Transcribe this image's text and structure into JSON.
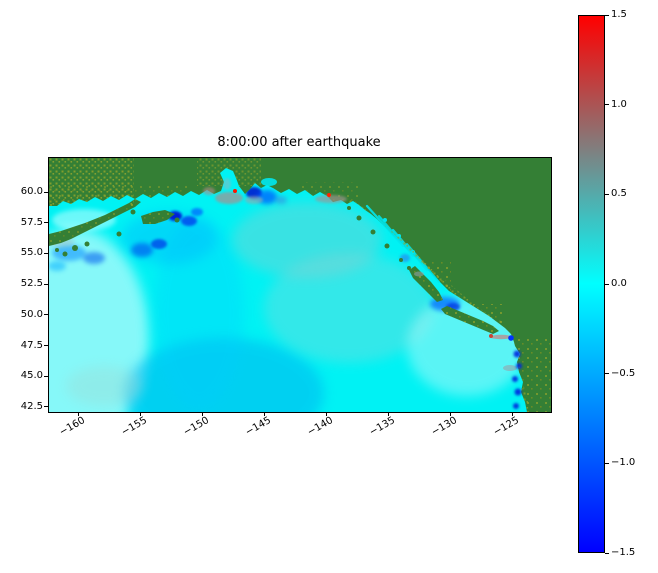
{
  "title": "8:00:00 after earthquake",
  "chart_data": {
    "type": "heatmap",
    "title": "8:00:00 after earthquake",
    "xlabel": "",
    "ylabel": "",
    "x_ticks": [
      "−160",
      "−155",
      "−150",
      "−145",
      "−140",
      "−135",
      "−130",
      "−125"
    ],
    "y_ticks": [
      "60.0",
      "57.5",
      "55.0",
      "52.5",
      "50.0",
      "47.5",
      "45.0",
      "42.5"
    ],
    "xlim": [
      -162.5,
      -122.2
    ],
    "ylim": [
      42.2,
      62.9
    ],
    "grid": false,
    "colorbar": {
      "position": "right",
      "ticks": [
        "1.5",
        "1.0",
        "0.5",
        "0.0",
        "−0.5",
        "−1.0",
        "−1.5"
      ],
      "vmin": -1.5,
      "vmax": 1.5,
      "gradient_stops": {
        "min": "#0000ff",
        "mid": "#00ffff",
        "max": "#ff0000"
      },
      "interpolation": "linear RGB: blue at -1.5, cyan at 0.0, gray near +0.75, red at +1.5"
    },
    "field": "sea-surface elevation anomaly (tsunami wave height) over the NE Pacific, Gulf of Alaska and NW American coast",
    "colors": {
      "land": "#347f35",
      "land_speckle": "#8fa32c",
      "ocean_zero": "#00f2f4"
    },
    "map_regions": {
      "land_visible": [
        "Alaska mainland (top)",
        "Alaska Peninsula",
        "Kodiak Island",
        "Southeast Alaska archipelago",
        "Haida Gwaii",
        "Vancouver Island",
        "Washington–Oregon coast (right edge)"
      ],
      "ocean": "North Pacific, mostly near 0 (cyan)"
    },
    "anomalies": [
      {
        "area": "Kodiak / Alaska Peninsula shelf",
        "lon": -152,
        "lat": 58,
        "approx_value": -1.0
      },
      {
        "area": "Gulf of Alaska coast near Kenai / Prince William Sound",
        "lon": -148,
        "lat": 60,
        "approx_value": "-1.0 to +0.6 (mixed blue and gray patches)"
      },
      {
        "area": "red spot off Kenai coast",
        "lon": -148,
        "lat": 60.4,
        "approx_value": 1.4
      },
      {
        "area": "red spot on southeast Alaska coast",
        "lon": -140,
        "lat": 59.9,
        "approx_value": 1.4
      },
      {
        "area": "Queen Charlotte Sound behind Haida Gwaii",
        "lon": -130.5,
        "lat": 51.5,
        "approx_value": -0.8
      },
      {
        "area": "Strait of Juan de Fuca",
        "lon": -124.5,
        "lat": 48.3,
        "approx_value": "+0.4 to +0.8 with blue pocket"
      },
      {
        "area": "Washington–Oregon nearshore",
        "lon": -124.5,
        "lat": 46,
        "approx_value": -1.0
      },
      {
        "area": "open ocean broad trough, south-central",
        "lon": -152,
        "lat": 45,
        "approx_value": -0.2
      },
      {
        "area": "open ocean elsewhere",
        "approx_value": "≈ 0.0"
      }
    ]
  }
}
